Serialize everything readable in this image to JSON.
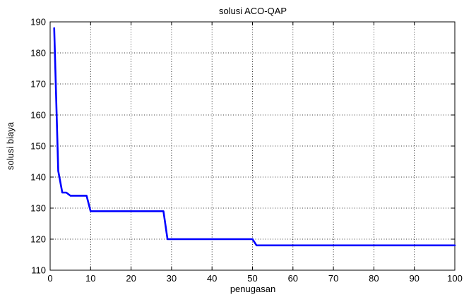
{
  "chart_data": {
    "type": "line",
    "title": "solusi ACO-QAP",
    "xlabel": "penugasan",
    "ylabel": "solusi biaya",
    "xlim": [
      0,
      100
    ],
    "ylim": [
      110,
      190
    ],
    "x_ticks": [
      0,
      10,
      20,
      30,
      40,
      50,
      60,
      70,
      80,
      90,
      100
    ],
    "y_ticks": [
      110,
      120,
      130,
      140,
      150,
      160,
      170,
      180,
      190
    ],
    "grid": true,
    "line_color": "#0000ff",
    "series": [
      {
        "points": [
          [
            1,
            188
          ],
          [
            2,
            142
          ],
          [
            3,
            135
          ],
          [
            4,
            135
          ],
          [
            5,
            134
          ],
          [
            6,
            134
          ],
          [
            7,
            134
          ],
          [
            8,
            134
          ],
          [
            9,
            134
          ],
          [
            10,
            129
          ],
          [
            20,
            129
          ],
          [
            28,
            129
          ],
          [
            29,
            120
          ],
          [
            40,
            120
          ],
          [
            50,
            120
          ],
          [
            51,
            118
          ],
          [
            60,
            118
          ],
          [
            70,
            118
          ],
          [
            80,
            118
          ],
          [
            90,
            118
          ],
          [
            100,
            118
          ]
        ]
      }
    ]
  }
}
